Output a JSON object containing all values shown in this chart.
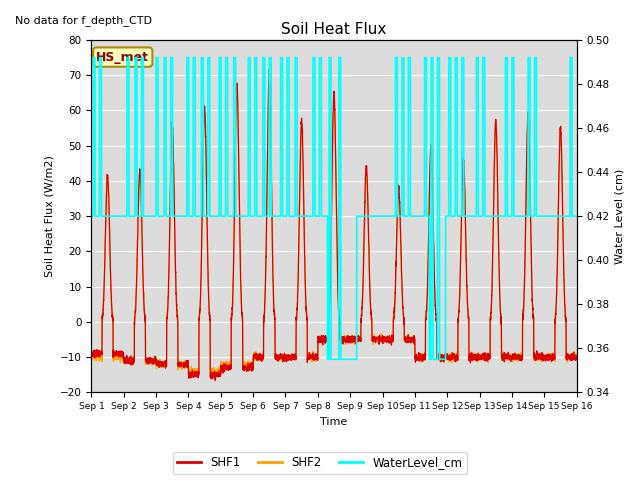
{
  "title": "Soil Heat Flux",
  "subtitle": "No data for f_depth_CTD",
  "ylabel_left": "Soil Heat Flux (W/m2)",
  "ylabel_right": "Water Level (cm)",
  "xlabel": "Time",
  "legend_label": "HS_met",
  "series_labels": [
    "SHF1",
    "SHF2",
    "WaterLevel_cm"
  ],
  "colors": {
    "SHF1": "#DD0000",
    "SHF2": "#FFA500",
    "WaterLevel_cm": "#00FFFF",
    "background": "#DCDCDC",
    "legend_box_fill": "#FFFFC0",
    "legend_box_edge": "#AA8800"
  },
  "ylim_left": [
    -20,
    80
  ],
  "ylim_right": [
    0.34,
    0.5
  ],
  "yticks_left": [
    -20,
    -10,
    0,
    10,
    20,
    30,
    40,
    50,
    60,
    70,
    80
  ],
  "yticks_right": [
    0.34,
    0.36,
    0.38,
    0.4,
    0.42,
    0.44,
    0.46,
    0.48,
    0.5
  ],
  "xtick_labels": [
    "Sep 1",
    "Sep 2",
    "Sep 3",
    "Sep 4",
    "Sep 5",
    "Sep 6",
    "Sep 7",
    "Sep 8",
    "Sep 9",
    "Sep 10",
    "Sep 11",
    "Sep 12",
    "Sep 13",
    "Sep 14",
    "Sep 15",
    "Sep 16"
  ],
  "n_days": 15,
  "pts_per_day": 288,
  "figsize": [
    6.4,
    4.8
  ],
  "dpi": 100
}
